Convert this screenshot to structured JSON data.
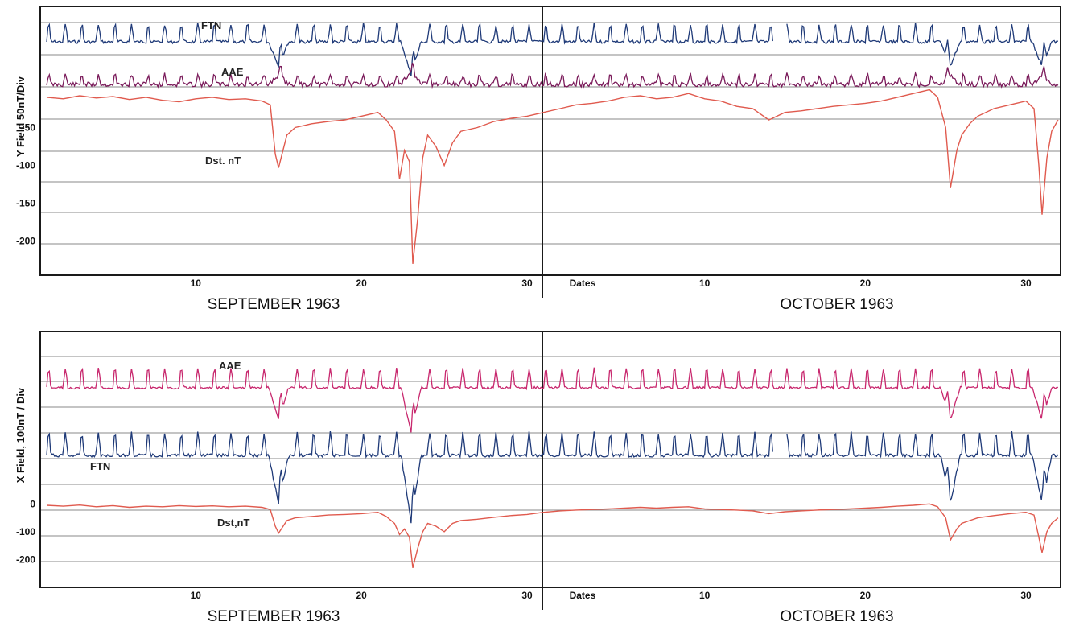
{
  "colors": {
    "ftn": "#1f3a78",
    "aae_y": "#7a1a5a",
    "aae_x": "#c8286e",
    "dst": "#e05a4e",
    "grid": "#8a8a8a",
    "frame": "#1a1a1a"
  },
  "chart_data": [
    {
      "type": "line",
      "panel": "top",
      "ylabel": "Y Field 50nT/Div",
      "ytick_labels": [
        "-50",
        "-100",
        "-150",
        "-200"
      ],
      "yticks": [
        -50,
        -100,
        -150,
        -200
      ],
      "ylim": [
        -245,
        110
      ],
      "xlim": [
        1,
        63
      ],
      "x_units": "days from 1 September 1963",
      "xtick_labels_left": [
        "10",
        "20",
        "30"
      ],
      "xtick_labels_right": [
        "Dates",
        "10",
        "20",
        "30"
      ],
      "month_left": "SEPTEMBER 1963",
      "month_right": "OCTOBER 1963",
      "series_labels": {
        "ftn": "FTN",
        "aae": "AAE",
        "dst": "Dst. nT"
      },
      "dst_values": [
        [
          1,
          -10
        ],
        [
          2,
          -12
        ],
        [
          3,
          -8
        ],
        [
          4,
          -11
        ],
        [
          5,
          -9
        ],
        [
          6,
          -13
        ],
        [
          7,
          -10
        ],
        [
          8,
          -14
        ],
        [
          9,
          -16
        ],
        [
          10,
          -12
        ],
        [
          11,
          -10
        ],
        [
          12,
          -13
        ],
        [
          13,
          -12
        ],
        [
          14,
          -15
        ],
        [
          14.5,
          -20
        ],
        [
          14.8,
          -85
        ],
        [
          15,
          -103
        ],
        [
          15.5,
          -60
        ],
        [
          16,
          -50
        ],
        [
          17,
          -45
        ],
        [
          18,
          -42
        ],
        [
          19,
          -40
        ],
        [
          20,
          -35
        ],
        [
          21,
          -30
        ],
        [
          21.5,
          -40
        ],
        [
          22,
          -55
        ],
        [
          22.3,
          -118
        ],
        [
          22.6,
          -80
        ],
        [
          22.9,
          -95
        ],
        [
          23.1,
          -230
        ],
        [
          23.4,
          -170
        ],
        [
          23.7,
          -90
        ],
        [
          24,
          -60
        ],
        [
          24.5,
          -75
        ],
        [
          25,
          -100
        ],
        [
          25.5,
          -70
        ],
        [
          26,
          -55
        ],
        [
          27,
          -50
        ],
        [
          28,
          -42
        ],
        [
          29,
          -38
        ],
        [
          30,
          -35
        ],
        [
          31,
          -30
        ],
        [
          32,
          -25
        ],
        [
          33,
          -20
        ],
        [
          34,
          -18
        ],
        [
          35,
          -15
        ],
        [
          36,
          -10
        ],
        [
          37,
          -8
        ],
        [
          38,
          -12
        ],
        [
          39,
          -10
        ],
        [
          40,
          -5
        ],
        [
          41,
          -12
        ],
        [
          42,
          -15
        ],
        [
          43,
          -22
        ],
        [
          44,
          -25
        ],
        [
          45,
          -40
        ],
        [
          46,
          -30
        ],
        [
          47,
          -28
        ],
        [
          48,
          -25
        ],
        [
          49,
          -22
        ],
        [
          50,
          -20
        ],
        [
          51,
          -18
        ],
        [
          52,
          -15
        ],
        [
          53,
          -10
        ],
        [
          54,
          -5
        ],
        [
          55,
          0
        ],
        [
          55.5,
          -10
        ],
        [
          56,
          -50
        ],
        [
          56.3,
          -130
        ],
        [
          56.7,
          -80
        ],
        [
          57,
          -60
        ],
        [
          57.5,
          -45
        ],
        [
          58,
          -35
        ],
        [
          59,
          -25
        ],
        [
          60,
          -20
        ],
        [
          61,
          -15
        ],
        [
          61.5,
          -25
        ],
        [
          61.8,
          -100
        ],
        [
          62,
          -165
        ],
        [
          62.3,
          -90
        ],
        [
          62.6,
          -55
        ],
        [
          63,
          -40
        ]
      ]
    },
    {
      "type": "line",
      "panel": "bottom",
      "ylabel": "X Field, 100nT / Div",
      "ytick_labels": [
        "0",
        "-100",
        "-200"
      ],
      "yticks": [
        0,
        -100,
        -200
      ],
      "ylim": [
        -300,
        620
      ],
      "xlim": [
        1,
        63
      ],
      "x_units": "days from 1 September 1963",
      "xtick_labels_left": [
        "10",
        "20",
        "30"
      ],
      "xtick_labels_right": [
        "Dates",
        "10",
        "20",
        "30"
      ],
      "month_left": "SEPTEMBER 1963",
      "month_right": "OCTOBER 1963",
      "series_labels": {
        "aae": "AAE",
        "ftn": "FTN",
        "dst": "Dst,nT"
      },
      "dst_values": [
        [
          1,
          -5
        ],
        [
          2,
          -8
        ],
        [
          3,
          -4
        ],
        [
          4,
          -10
        ],
        [
          5,
          -6
        ],
        [
          6,
          -12
        ],
        [
          7,
          -8
        ],
        [
          8,
          -10
        ],
        [
          9,
          -6
        ],
        [
          10,
          -9
        ],
        [
          11,
          -7
        ],
        [
          12,
          -10
        ],
        [
          13,
          -8
        ],
        [
          14,
          -12
        ],
        [
          14.5,
          -20
        ],
        [
          14.8,
          -80
        ],
        [
          15,
          -105
        ],
        [
          15.5,
          -60
        ],
        [
          16,
          -50
        ],
        [
          17,
          -45
        ],
        [
          18,
          -40
        ],
        [
          19,
          -38
        ],
        [
          20,
          -35
        ],
        [
          21,
          -30
        ],
        [
          21.5,
          -45
        ],
        [
          22,
          -70
        ],
        [
          22.3,
          -110
        ],
        [
          22.6,
          -90
        ],
        [
          22.9,
          -120
        ],
        [
          23.1,
          -230
        ],
        [
          23.4,
          -160
        ],
        [
          23.7,
          -100
        ],
        [
          24,
          -70
        ],
        [
          24.5,
          -80
        ],
        [
          25,
          -100
        ],
        [
          25.5,
          -70
        ],
        [
          26,
          -60
        ],
        [
          27,
          -55
        ],
        [
          28,
          -48
        ],
        [
          29,
          -42
        ],
        [
          30,
          -38
        ],
        [
          31,
          -30
        ],
        [
          32,
          -25
        ],
        [
          33,
          -22
        ],
        [
          34,
          -20
        ],
        [
          35,
          -18
        ],
        [
          36,
          -15
        ],
        [
          37,
          -12
        ],
        [
          38,
          -15
        ],
        [
          39,
          -12
        ],
        [
          40,
          -10
        ],
        [
          41,
          -18
        ],
        [
          42,
          -20
        ],
        [
          43,
          -22
        ],
        [
          44,
          -25
        ],
        [
          45,
          -35
        ],
        [
          46,
          -28
        ],
        [
          47,
          -25
        ],
        [
          48,
          -22
        ],
        [
          49,
          -20
        ],
        [
          50,
          -18
        ],
        [
          51,
          -15
        ],
        [
          52,
          -12
        ],
        [
          53,
          -8
        ],
        [
          54,
          -5
        ],
        [
          55,
          0
        ],
        [
          55.5,
          -10
        ],
        [
          56,
          -50
        ],
        [
          56.3,
          -130
        ],
        [
          56.7,
          -90
        ],
        [
          57,
          -70
        ],
        [
          57.5,
          -60
        ],
        [
          58,
          -50
        ],
        [
          59,
          -42
        ],
        [
          60,
          -35
        ],
        [
          61,
          -30
        ],
        [
          61.5,
          -40
        ],
        [
          61.8,
          -120
        ],
        [
          62,
          -175
        ],
        [
          62.3,
          -100
        ],
        [
          62.6,
          -70
        ],
        [
          63,
          -50
        ]
      ]
    }
  ]
}
